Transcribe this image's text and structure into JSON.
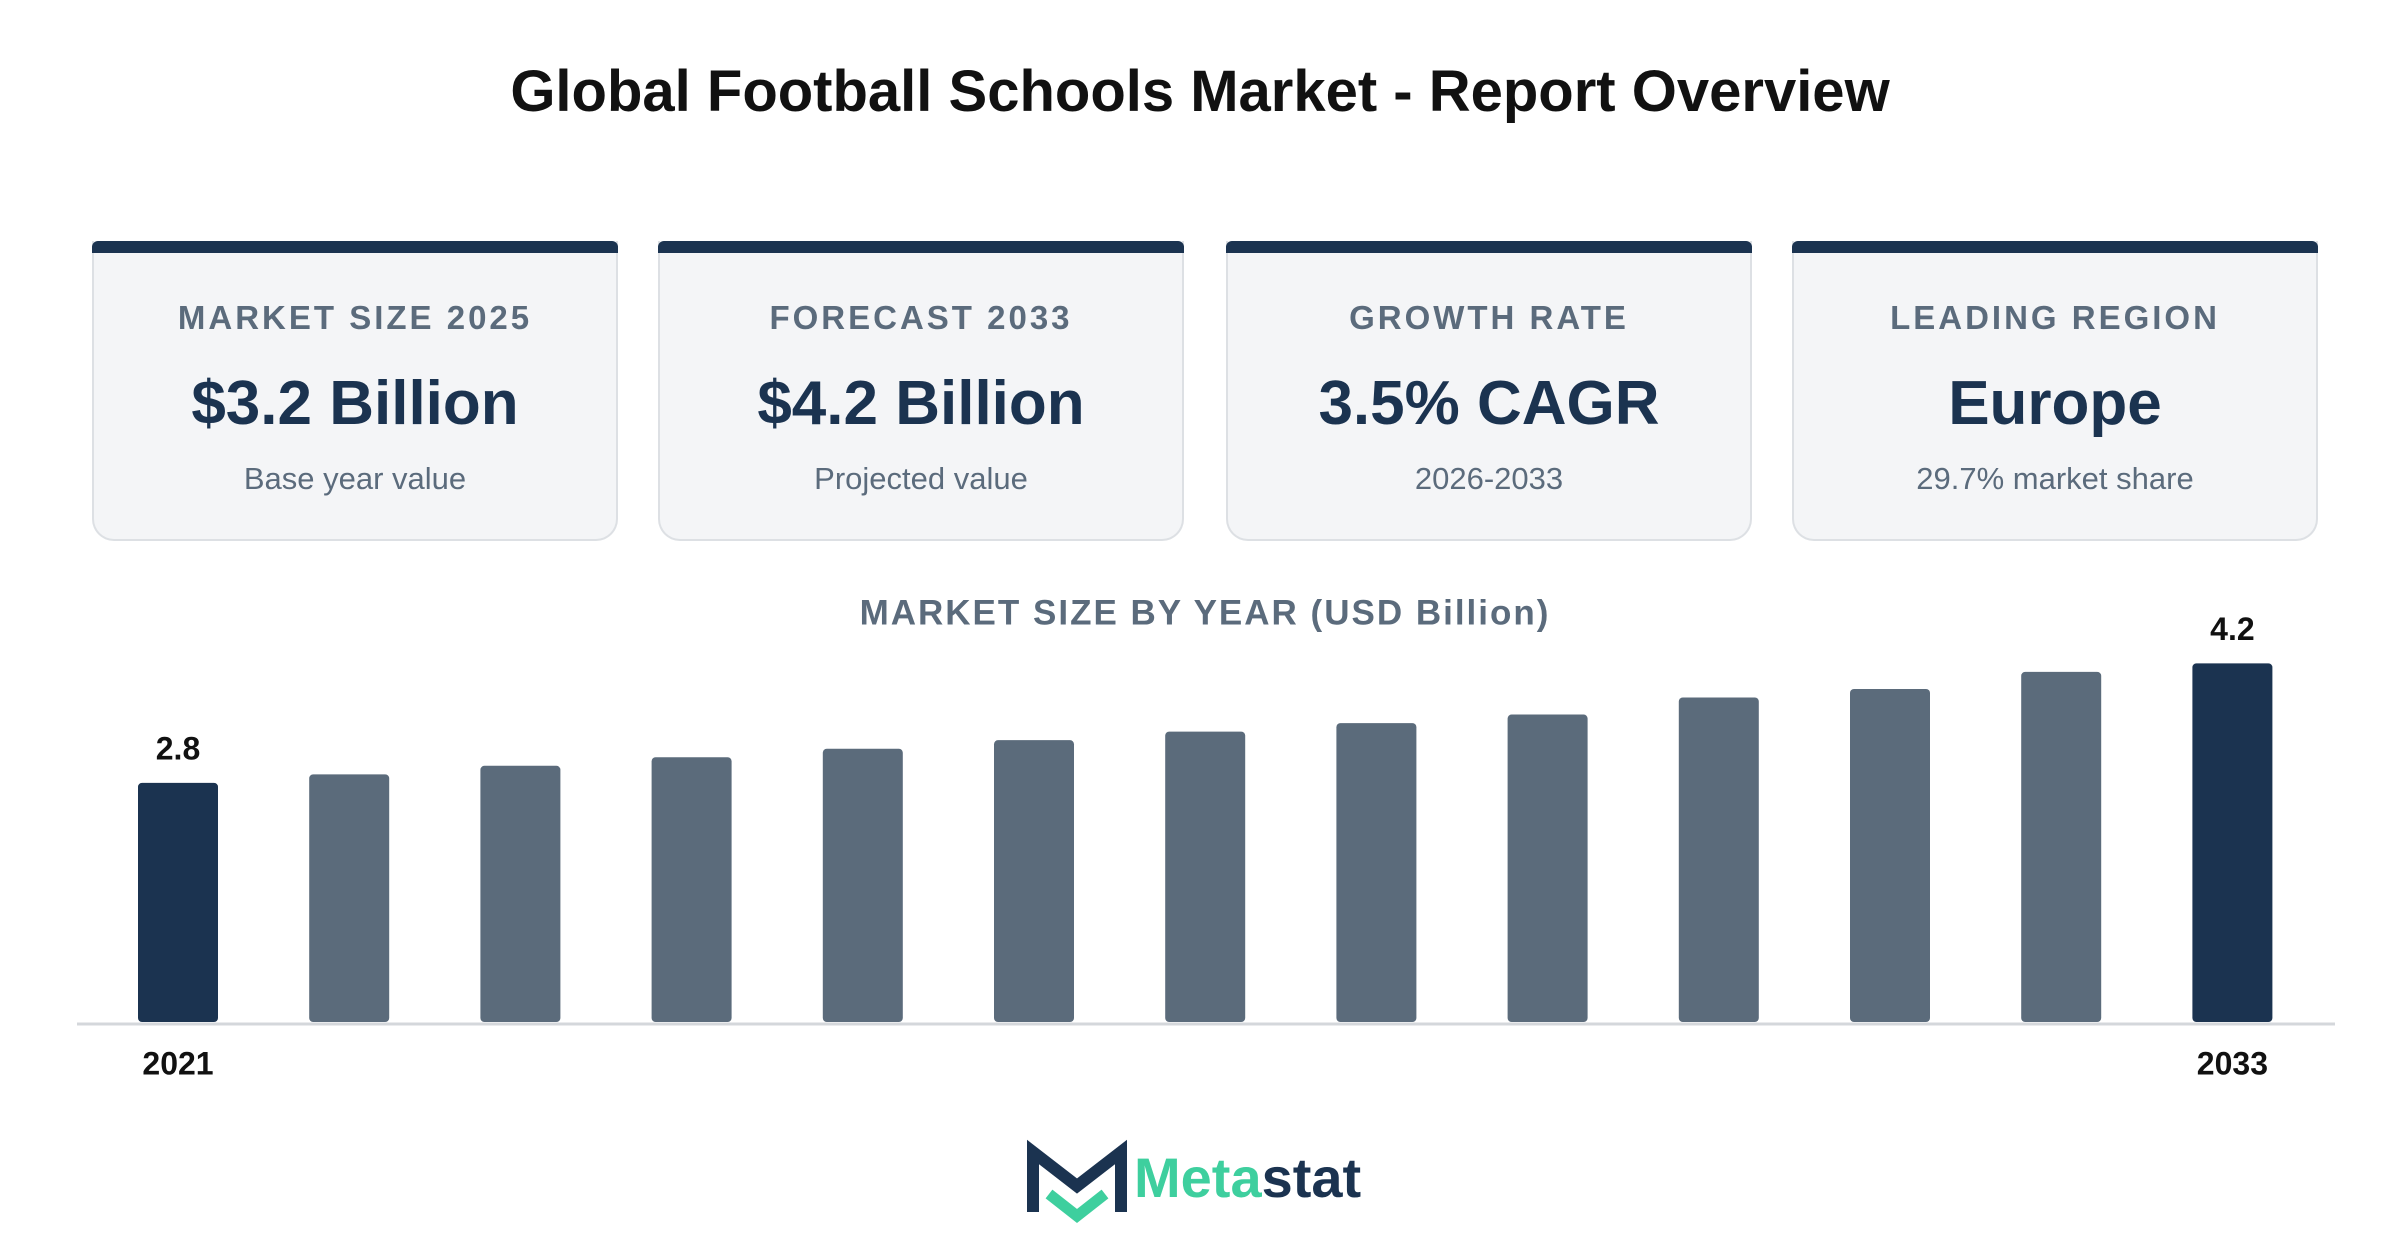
{
  "title": "Global Football Schools Market - Report Overview",
  "cards": [
    {
      "label": "MARKET SIZE 2025",
      "value": "$3.2 Billion",
      "note": "Base year value"
    },
    {
      "label": "FORECAST 2033",
      "value": "$4.2 Billion",
      "note": "Projected value"
    },
    {
      "label": "GROWTH RATE",
      "value": "3.5% CAGR",
      "note": "2026-2033"
    },
    {
      "label": "LEADING REGION",
      "value": "Europe",
      "note": "29.7% market share"
    }
  ],
  "chart_data": {
    "type": "bar",
    "title": "MARKET SIZE BY YEAR (USD Billion)",
    "categories": [
      "2021",
      null,
      null,
      null,
      null,
      null,
      null,
      null,
      null,
      null,
      null,
      null,
      "2033"
    ],
    "values": [
      2.8,
      2.9,
      3.0,
      3.1,
      3.2,
      3.3,
      3.4,
      3.5,
      3.6,
      3.8,
      3.9,
      4.1,
      4.2
    ],
    "value_labels": [
      "2.8",
      null,
      null,
      null,
      null,
      null,
      null,
      null,
      null,
      null,
      null,
      null,
      "4.2"
    ],
    "colors": [
      "#1b3350",
      "#5b6b7b",
      "#5b6b7b",
      "#5b6b7b",
      "#5b6b7b",
      "#5b6b7b",
      "#5b6b7b",
      "#5b6b7b",
      "#5b6b7b",
      "#5b6b7b",
      "#5b6b7b",
      "#5b6b7b",
      "#1b3350"
    ],
    "ylim": [
      0,
      5
    ]
  },
  "logo": {
    "text": [
      "Meta",
      "stat"
    ]
  }
}
